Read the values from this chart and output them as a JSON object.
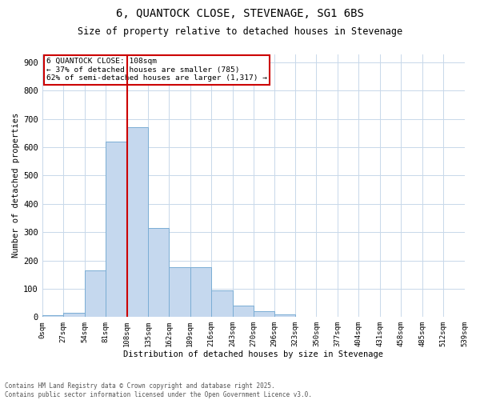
{
  "title_line1": "6, QUANTOCK CLOSE, STEVENAGE, SG1 6BS",
  "title_line2": "Size of property relative to detached houses in Stevenage",
  "xlabel": "Distribution of detached houses by size in Stevenage",
  "ylabel": "Number of detached properties",
  "footnote": "Contains HM Land Registry data © Crown copyright and database right 2025.\nContains public sector information licensed under the Open Government Licence v3.0.",
  "annotation_line1": "6 QUANTOCK CLOSE: 108sqm",
  "annotation_line2": "← 37% of detached houses are smaller (785)",
  "annotation_line3": "62% of semi-detached houses are larger (1,317) →",
  "property_size": 108,
  "bin_edges": [
    0,
    27,
    54,
    81,
    108,
    135,
    162,
    189,
    216,
    243,
    270,
    296,
    323,
    350,
    377,
    404,
    431,
    458,
    485,
    512,
    539
  ],
  "bin_counts": [
    5,
    15,
    165,
    620,
    670,
    315,
    175,
    175,
    95,
    40,
    20,
    10,
    0,
    0,
    0,
    0,
    0,
    0,
    0,
    0
  ],
  "bar_color": "#c5d8ee",
  "bar_edge_color": "#7aadd4",
  "vline_color": "#cc0000",
  "annotation_box_color": "#cc0000",
  "background_color": "#ffffff",
  "grid_color": "#c8d8ea",
  "ylim": [
    0,
    930
  ],
  "yticks": [
    0,
    100,
    200,
    300,
    400,
    500,
    600,
    700,
    800,
    900
  ]
}
